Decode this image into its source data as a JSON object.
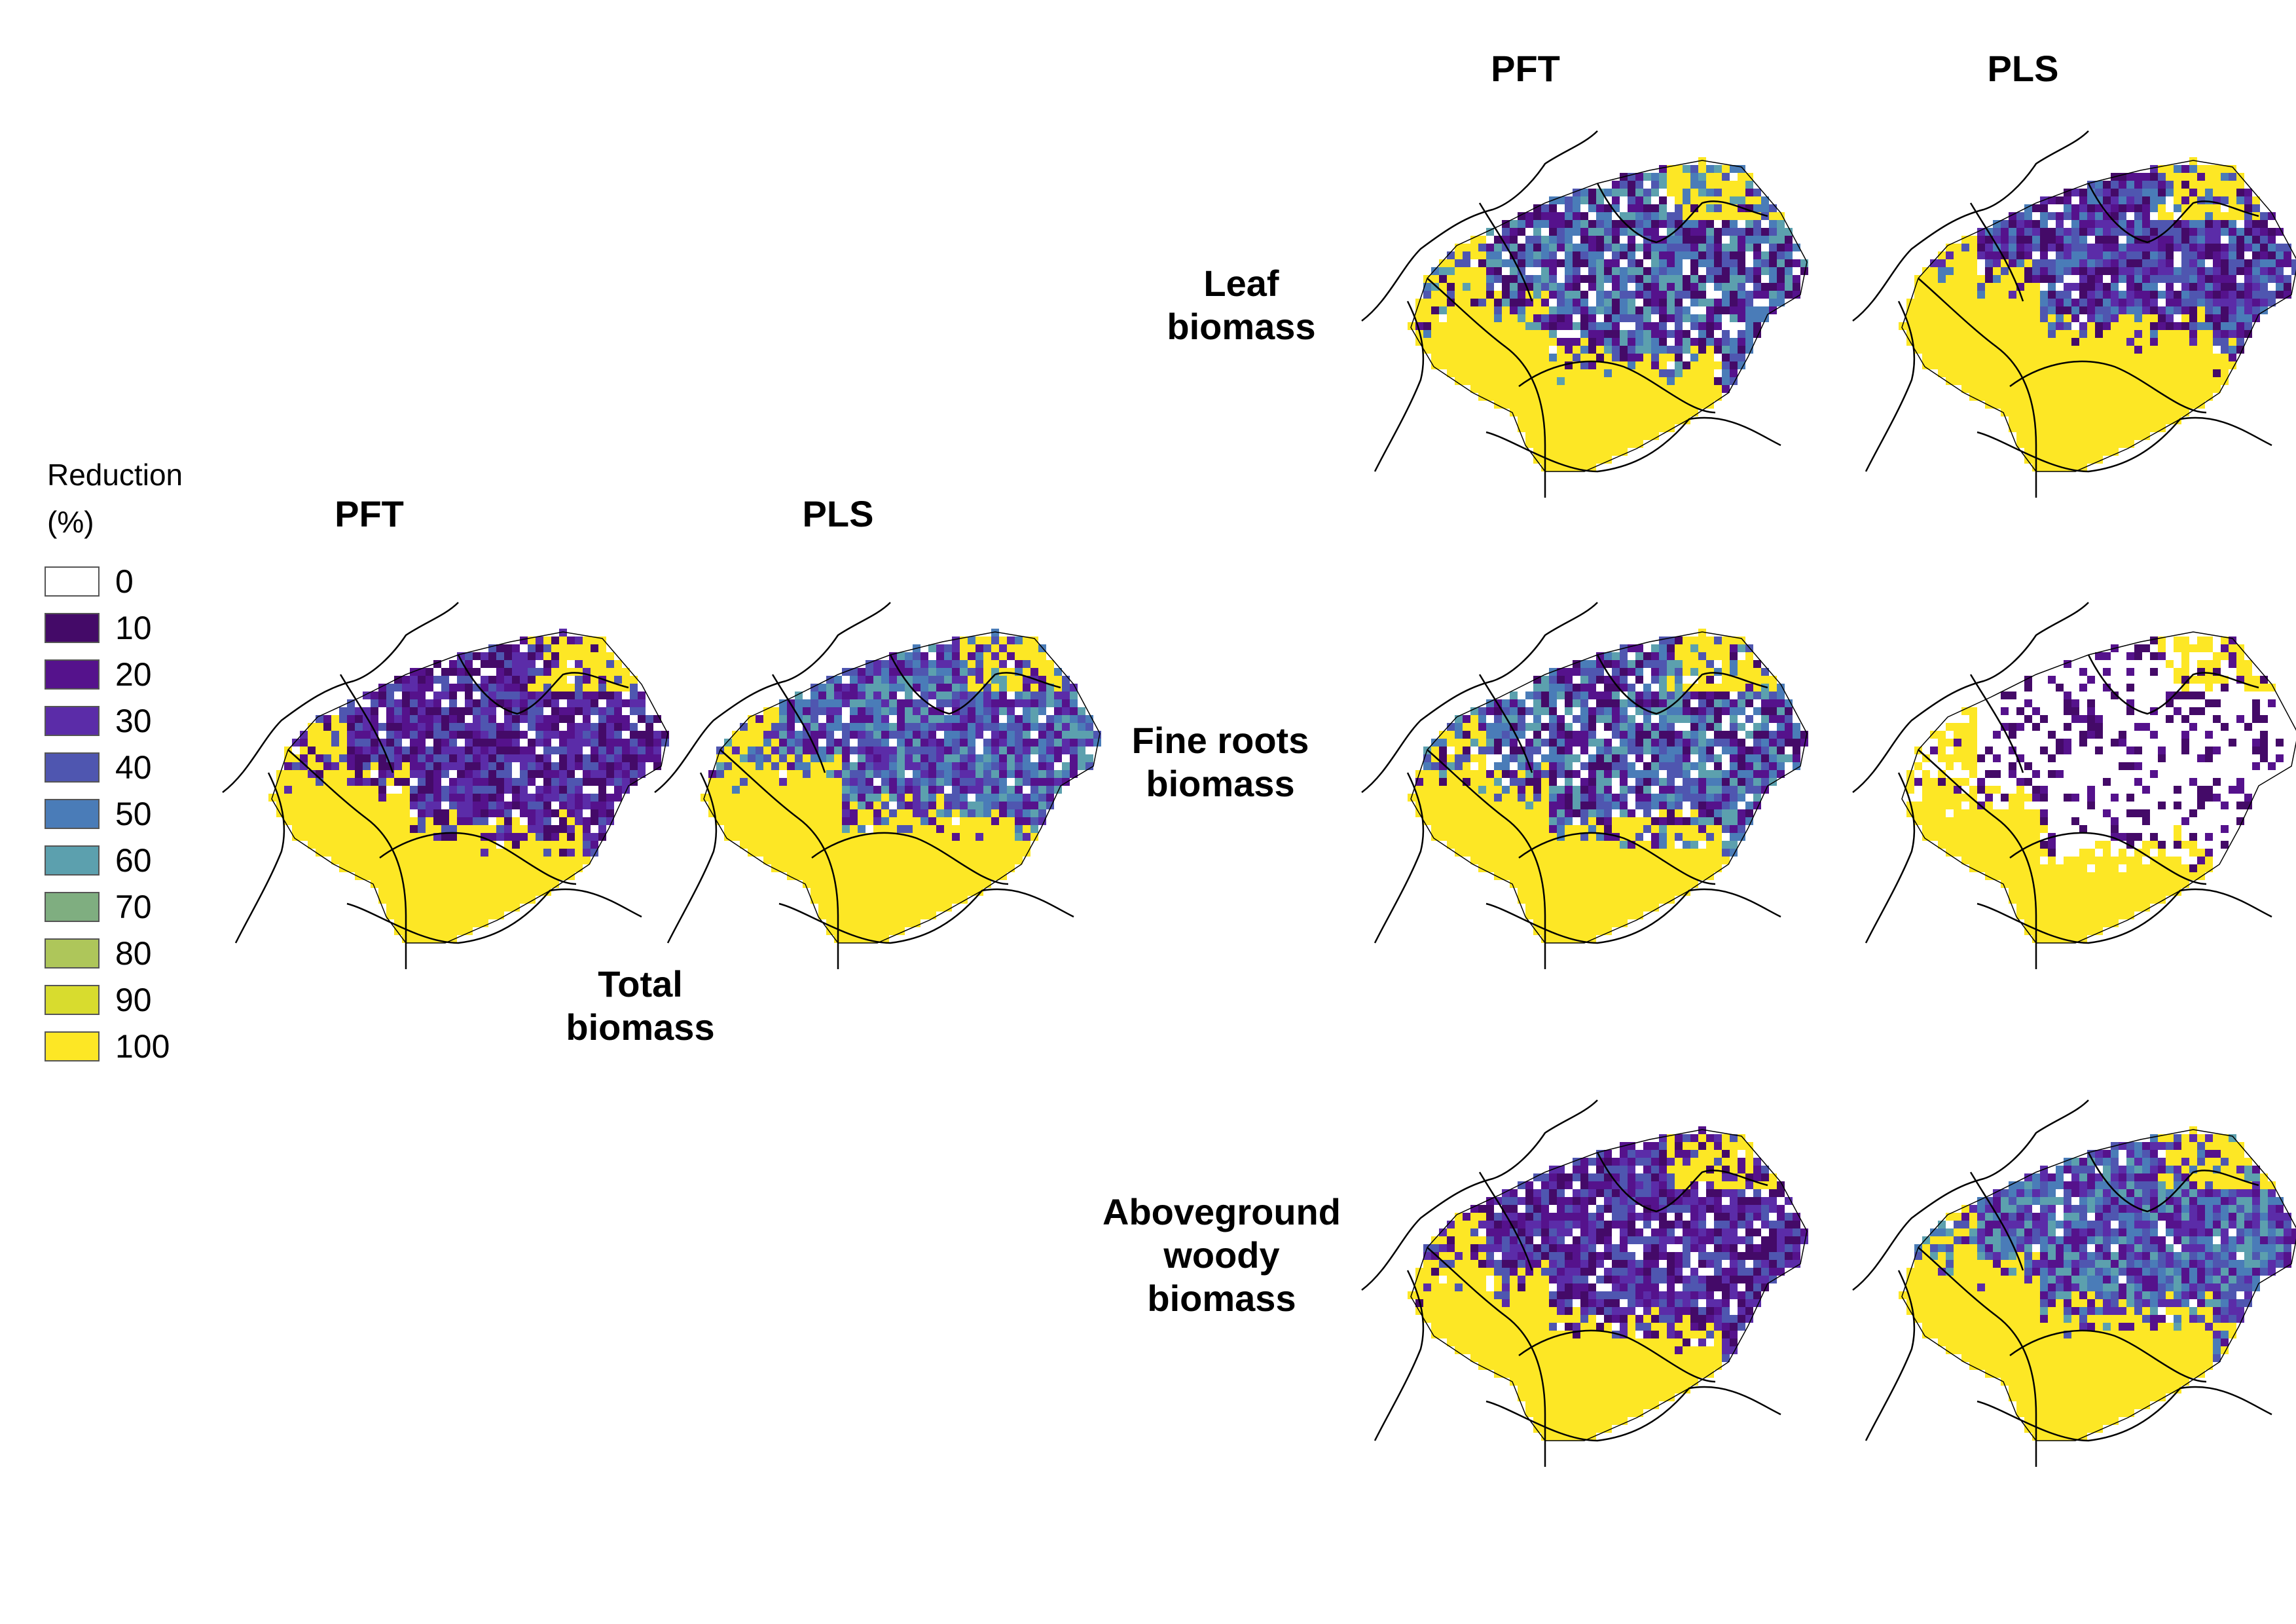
{
  "legend": {
    "title": "Reduction",
    "unit": "(%)",
    "items": [
      {
        "label": "0",
        "color": "#ffffff"
      },
      {
        "label": "10",
        "color": "#440a68"
      },
      {
        "label": "20",
        "color": "#55128c"
      },
      {
        "label": "30",
        "color": "#5b2ca8"
      },
      {
        "label": "40",
        "color": "#4f56b0"
      },
      {
        "label": "50",
        "color": "#4a7cb8"
      },
      {
        "label": "60",
        "color": "#5ca0ae"
      },
      {
        "label": "70",
        "color": "#7fae80"
      },
      {
        "label": "80",
        "color": "#aec65a"
      },
      {
        "label": "90",
        "color": "#d8dc2e"
      },
      {
        "label": "100",
        "color": "#fde725"
      }
    ]
  },
  "columns": {
    "pft": "PFT",
    "pls": "PLS"
  },
  "rows": {
    "total": [
      "Total",
      "biomass"
    ],
    "leaf": [
      "Leaf",
      "biomass"
    ],
    "fine_roots": [
      "Fine roots",
      "biomass"
    ],
    "woody": [
      "Aboveground",
      "woody",
      "biomass"
    ]
  },
  "maps": [
    {
      "key": "total-pft",
      "row": "total",
      "model": "PFT",
      "dominant": "10-40",
      "note": "yellow south, purple north"
    },
    {
      "key": "total-pls",
      "row": "total",
      "model": "PLS",
      "dominant": "20-60"
    },
    {
      "key": "leaf-pft",
      "row": "leaf",
      "model": "PFT",
      "dominant": "10-60"
    },
    {
      "key": "leaf-pls",
      "row": "leaf",
      "model": "PLS",
      "dominant": "10-50"
    },
    {
      "key": "roots-pft",
      "row": "fine_roots",
      "model": "PFT",
      "dominant": "10-60"
    },
    {
      "key": "roots-pls",
      "row": "fine_roots",
      "model": "PLS",
      "dominant": "0-10"
    },
    {
      "key": "woody-pft",
      "row": "woody",
      "model": "PFT",
      "dominant": "10-40"
    },
    {
      "key": "woody-pls",
      "row": "woody",
      "model": "PLS",
      "dominant": "20-60"
    }
  ]
}
